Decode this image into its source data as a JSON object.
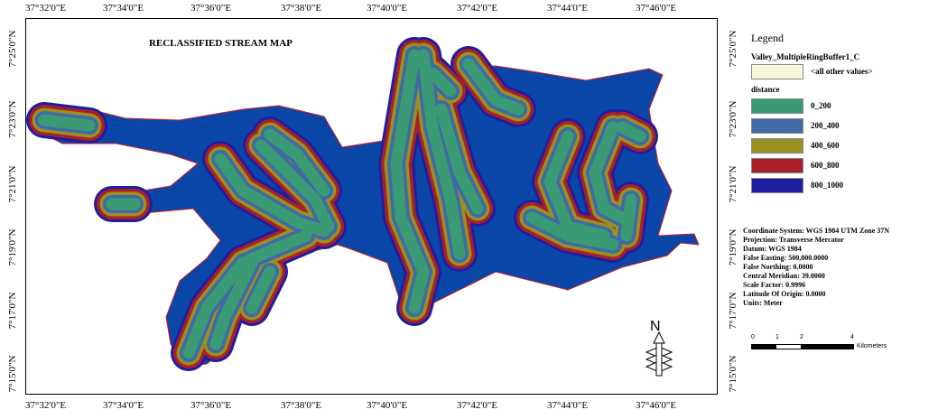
{
  "map": {
    "title": "RECLASSIFIED STREAM MAP"
  },
  "grid": {
    "top_labels": [
      "37°32'0\"E",
      "37°34'0\"E",
      "37°36'0\"E",
      "37°38'0\"E",
      "37°40'0\"E",
      "37°42'0\"E",
      "37°44'0\"E",
      "37°46'0\"E"
    ],
    "side_labels": [
      "7°25'0\"N",
      "7°23'0\"N",
      "7°21'0\"N",
      "7°19'0\"N",
      "7°17'0\"N",
      "7°15'0\"N"
    ]
  },
  "legend": {
    "title": "Legend",
    "layer": "Valley_MultipleRingBuffer1_C",
    "other": {
      "label": "<all other values>",
      "color": "#f8f8d8"
    },
    "field": "distance",
    "classes": [
      {
        "label": "0_200",
        "color": "#3a9a74"
      },
      {
        "label": "200_400",
        "color": "#3f6aa6"
      },
      {
        "label": "400_600",
        "color": "#9a9020"
      },
      {
        "label": "600_800",
        "color": "#a82028"
      },
      {
        "label": "800_1000",
        "color": "#1f1ea0"
      }
    ],
    "background_color": "#0a46a8"
  },
  "metadata": [
    "Coordinate System: WGS 1984 UTM Zone 37N",
    "Projection: Transverse Mercator",
    "Datum: WGS 1984",
    "False Easting: 500,000.0000",
    "False Northing: 0.0000",
    "Central Meridian: 39.0000",
    "Scale Factor: 0.9996",
    "Latitude Of Origin: 0.0000",
    "Units: Meter"
  ],
  "scale_bar": {
    "ticks": [
      "0",
      "1",
      "2",
      "4"
    ],
    "unit": "Kilometers"
  },
  "north_arrow": {
    "label": "N"
  }
}
